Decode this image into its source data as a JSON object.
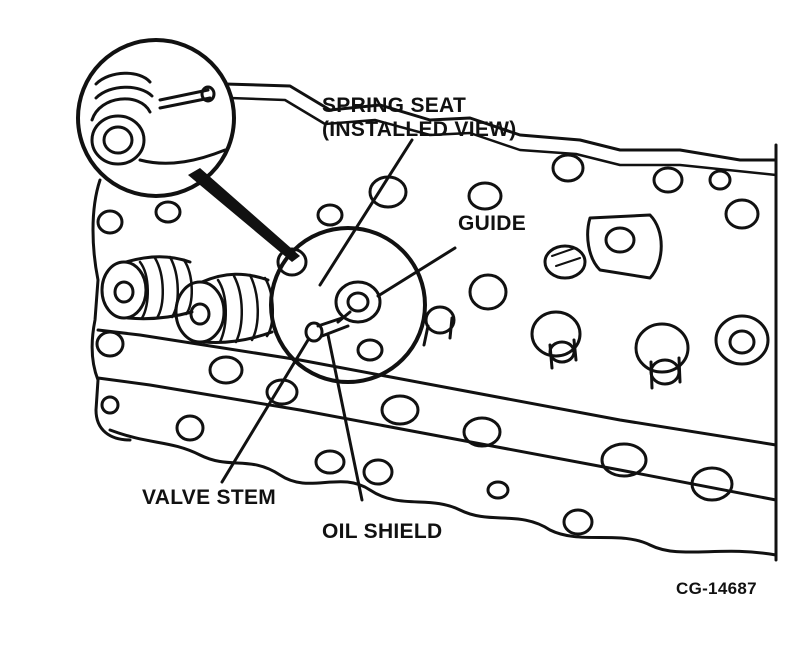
{
  "labels": {
    "spring_seat_line1": "SPRING SEAT",
    "spring_seat_line2": "(INSTALLED VIEW)",
    "guide": "GUIDE",
    "valve_stem": "VALVE STEM",
    "oil_shield": "OIL SHIELD",
    "figure_code": "CG-14687"
  },
  "colors": {
    "ink": "#111111",
    "paper": "#ffffff"
  }
}
